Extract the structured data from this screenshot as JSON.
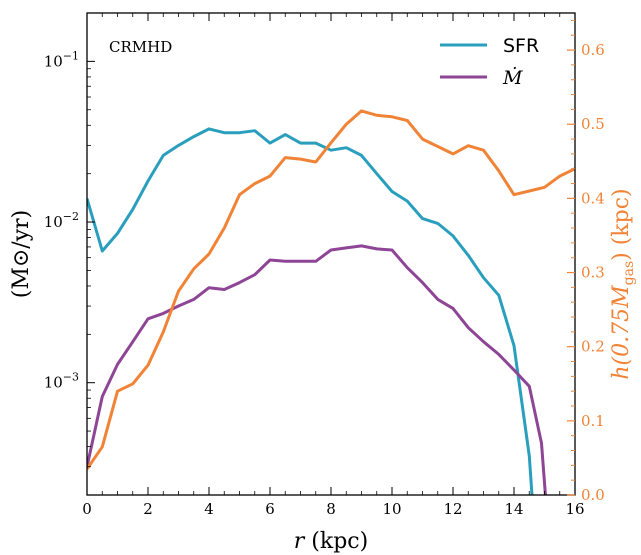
{
  "chart_data": {
    "type": "line",
    "annotation": "CRMHD",
    "xlabel_var": "r",
    "xlabel_unit": " (kpc)",
    "ylabel_left": "(M⊙/yr)",
    "ylabel_right_prefix": "h(0.75M",
    "ylabel_right_sub": "gas",
    "ylabel_right_suffix": ") (kpc)",
    "xlim": [
      0,
      16
    ],
    "ylim_left": [
      0.0002,
      0.2
    ],
    "yscale_left": "log",
    "ylim_right": [
      0.0,
      0.65
    ],
    "x_ticks": [
      "0",
      "2",
      "4",
      "6",
      "8",
      "10",
      "12",
      "14",
      "16"
    ],
    "y_left_ticks": [
      {
        "base": "10",
        "exp": "−1",
        "value": 0.1
      },
      {
        "base": "10",
        "exp": "−2",
        "value": 0.01
      },
      {
        "base": "10",
        "exp": "−3",
        "value": 0.001
      }
    ],
    "y_right_ticks": [
      "0.0",
      "0.1",
      "0.2",
      "0.3",
      "0.4",
      "0.5",
      "0.6"
    ],
    "legend_position": "top-right",
    "colors": {
      "sfr": "#2a9fbd",
      "mdot": "#8e4596",
      "h": "#f08336"
    },
    "series": [
      {
        "name": "SFR",
        "axis": "left",
        "x": [
          0,
          0.5,
          1,
          1.5,
          2,
          2.5,
          3,
          3.5,
          4,
          4.5,
          5,
          5.5,
          6,
          6.5,
          7,
          7.5,
          8,
          8.5,
          9,
          9.5,
          10,
          10.5,
          11,
          11.5,
          12,
          12.5,
          13,
          13.5,
          14,
          14.5,
          14.7
        ],
        "values": [
          0.014,
          0.0066,
          0.0085,
          0.012,
          0.018,
          0.026,
          0.03,
          0.034,
          0.038,
          0.036,
          0.036,
          0.037,
          0.031,
          0.035,
          0.031,
          0.031,
          0.028,
          0.029,
          0.026,
          0.02,
          0.0155,
          0.0135,
          0.0105,
          0.0098,
          0.0082,
          0.0062,
          0.0045,
          0.0035,
          0.0017,
          0.00035,
          0.0001
        ]
      },
      {
        "name": "Ṁ",
        "axis": "left",
        "x": [
          0,
          0.5,
          1,
          1.5,
          2,
          2.5,
          3,
          3.5,
          4,
          4.5,
          5,
          5.5,
          6,
          6.5,
          7,
          7.5,
          8,
          8.5,
          9,
          9.5,
          10,
          10.5,
          11,
          11.5,
          12,
          12.5,
          13,
          13.5,
          14,
          14.5,
          14.9,
          15.15
        ],
        "values": [
          0.0003,
          0.00082,
          0.0013,
          0.0018,
          0.0025,
          0.0027,
          0.003,
          0.0033,
          0.0039,
          0.0038,
          0.0042,
          0.0047,
          0.0058,
          0.0057,
          0.0057,
          0.0057,
          0.0067,
          0.0069,
          0.0071,
          0.0068,
          0.0067,
          0.0052,
          0.0042,
          0.0033,
          0.0029,
          0.0022,
          0.0018,
          0.0015,
          0.0012,
          0.00095,
          0.00042,
          0.0001
        ]
      },
      {
        "name": "h(0.75M_gas)",
        "axis": "right",
        "x": [
          0,
          0.5,
          1,
          1.5,
          2,
          2.5,
          3,
          3.5,
          4,
          4.5,
          5,
          5.5,
          6,
          6.5,
          7,
          7.5,
          8,
          8.5,
          9,
          9.5,
          10,
          10.5,
          11,
          11.5,
          12,
          12.5,
          13,
          13.5,
          14,
          14.5,
          15,
          15.5,
          16
        ],
        "values": [
          0.035,
          0.065,
          0.14,
          0.15,
          0.175,
          0.22,
          0.275,
          0.305,
          0.325,
          0.36,
          0.405,
          0.42,
          0.43,
          0.455,
          0.453,
          0.449,
          0.475,
          0.5,
          0.518,
          0.512,
          0.51,
          0.505,
          0.48,
          0.47,
          0.46,
          0.471,
          0.465,
          0.437,
          0.405,
          0.41,
          0.415,
          0.43,
          0.44
        ]
      }
    ]
  }
}
